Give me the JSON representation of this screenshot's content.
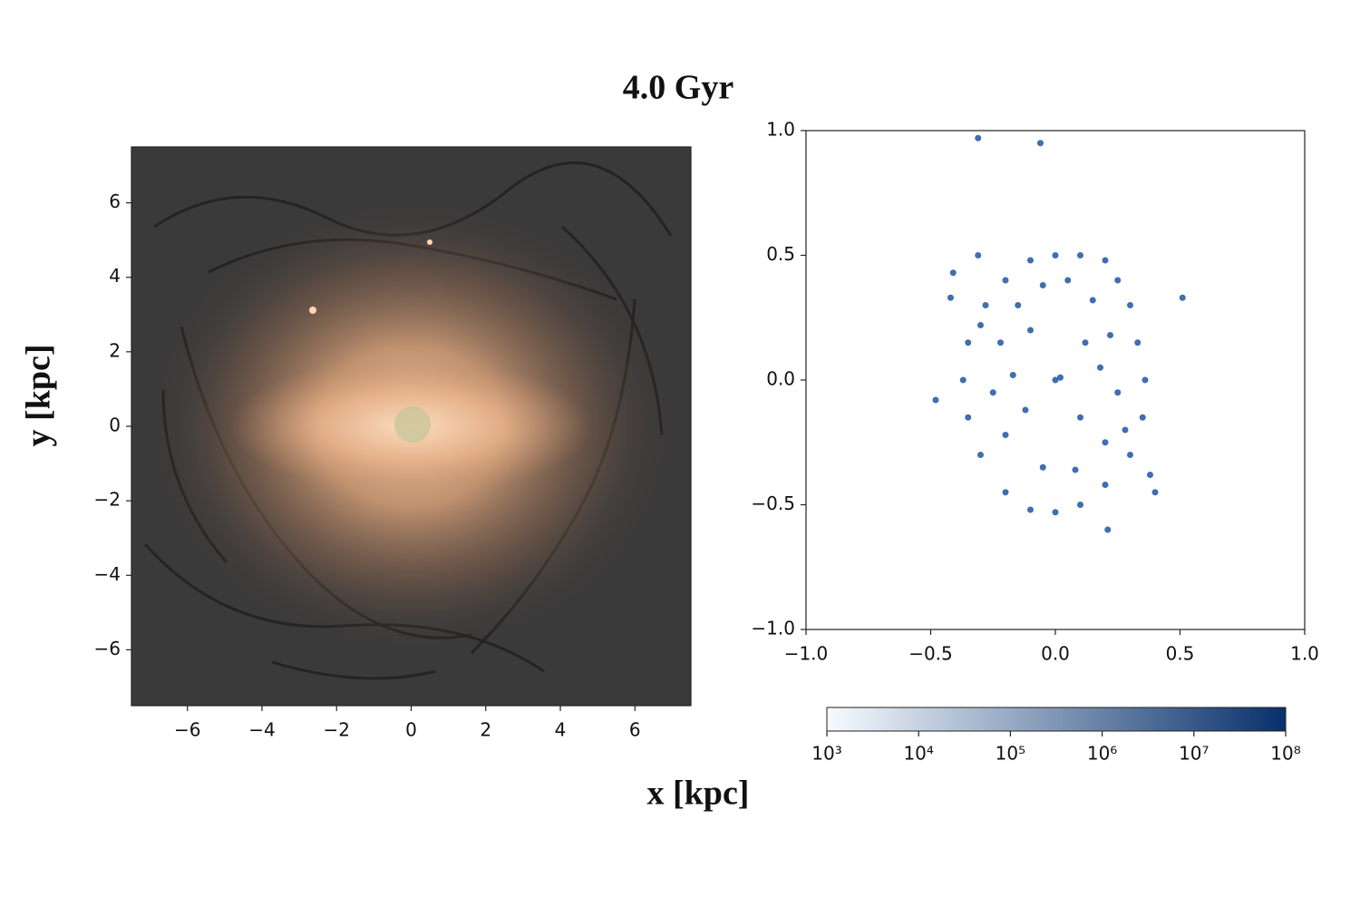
{
  "title": "4.0 Gyr",
  "xlabel": "x [kpc]",
  "ylabel": "y [kpc]",
  "chart_data": [
    {
      "type": "image",
      "xlim": [
        -7.5,
        7.5
      ],
      "ylim": [
        -7.5,
        7.5
      ],
      "xticks": [
        {
          "value": -6,
          "label": "−6"
        },
        {
          "value": -4,
          "label": "−4"
        },
        {
          "value": -2,
          "label": "−2"
        },
        0,
        2,
        4,
        6
      ],
      "yticks": [
        {
          "value": -6,
          "label": "−6"
        },
        {
          "value": -4,
          "label": "−4"
        },
        {
          "value": -2,
          "label": "−2"
        },
        0,
        2,
        4,
        6
      ]
    },
    {
      "type": "scatter",
      "color": "#2a5ea8",
      "x": [
        -0.31,
        -0.06,
        0.51,
        -0.41,
        -0.31,
        -0.48,
        0.21,
        0.4,
        0.38,
        -0.42,
        0,
        0.02,
        -0.2,
        -0.1,
        0,
        0.1,
        0.2,
        0.25,
        -0.28,
        0.3,
        -0.35,
        0.33,
        -0.37,
        0.36,
        -0.35,
        0.35,
        -0.3,
        0.3,
        -0.2,
        -0.1,
        0,
        0.1,
        0.2,
        -0.15,
        0.15,
        -0.22,
        0.22,
        -0.25,
        0.25,
        -0.2,
        0.2,
        -0.05,
        0.08,
        -0.1,
        0.12,
        -0.12,
        0.1,
        -0.3,
        0.28,
        0.05,
        -0.05,
        0.18,
        -0.17
      ],
      "y": [
        0.97,
        0.95,
        0.33,
        0.43,
        0.5,
        -0.08,
        -0.6,
        -0.45,
        -0.38,
        0.33,
        0,
        0.01,
        0.4,
        0.48,
        0.5,
        0.5,
        0.48,
        0.4,
        0.3,
        0.3,
        0.15,
        0.15,
        0,
        0,
        -0.15,
        -0.15,
        -0.3,
        -0.3,
        -0.45,
        -0.52,
        -0.53,
        -0.5,
        -0.42,
        0.3,
        0.32,
        0.15,
        0.18,
        -0.05,
        -0.05,
        -0.22,
        -0.25,
        -0.35,
        -0.36,
        0.2,
        0.15,
        -0.12,
        -0.15,
        0.22,
        -0.2,
        0.4,
        0.38,
        0.05,
        0.02
      ],
      "xlim": [
        -1.0,
        1.0
      ],
      "ylim": [
        -1.0,
        1.0
      ],
      "xticks": [
        {
          "value": -1.0,
          "label": "−1.0"
        },
        {
          "value": -0.5,
          "label": "−0.5"
        },
        {
          "value": 0,
          "label": "0.0"
        },
        0.5,
        {
          "value": 1.0,
          "label": "1.0"
        }
      ],
      "yticks": [
        {
          "value": -1.0,
          "label": "−1.0"
        },
        {
          "value": -0.5,
          "label": "−0.5"
        },
        {
          "value": 0,
          "label": "0.0"
        },
        0.5,
        {
          "value": 1.0,
          "label": "1.0"
        }
      ],
      "colorbar": {
        "scale": "log",
        "colors": [
          "#f7fbff",
          "#08306b"
        ],
        "lim": [
          1000,
          100000000
        ],
        "ticks": [
          {
            "value": 1000,
            "label": "10³"
          },
          {
            "value": 10000,
            "label": "10⁴"
          },
          {
            "value": 100000,
            "label": "10⁵"
          },
          {
            "value": 1000000,
            "label": "10⁶"
          },
          {
            "value": 10000000,
            "label": "10⁷"
          },
          {
            "value": 100000000,
            "label": "10⁸"
          }
        ]
      }
    }
  ]
}
